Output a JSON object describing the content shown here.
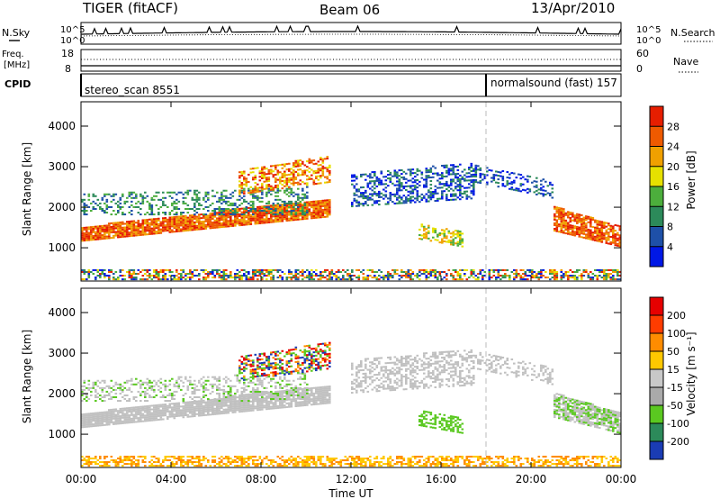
{
  "header": {
    "radar": "TIGER (fitACF)",
    "beam": "Beam 06",
    "date": "13/Apr/2010"
  },
  "noise_panel": {
    "left_label": "N.Sky",
    "right_label": "N.Search",
    "tick_top": "10^5",
    "tick_bottom": "10^0"
  },
  "freq_panel": {
    "left_label_1": "Freq.",
    "left_label_2": "[MHz]",
    "right_label": "Nave",
    "left_ticks": [
      "18",
      "8"
    ],
    "right_ticks": [
      "60",
      "0"
    ]
  },
  "cpid_panel": {
    "label": "CPID",
    "programs": [
      {
        "name": "stereo_scan 8551",
        "start_hour": 0
      },
      {
        "name": "normalsound (fast) 157",
        "start_hour": 18
      }
    ]
  },
  "chart_data": [
    {
      "type": "heatmap",
      "name": "power",
      "xlabel": "Time UT",
      "ylabel": "Slant Range [km]",
      "xlim": [
        0,
        24
      ],
      "ylim": [
        180,
        4600
      ],
      "x_ticks": [
        "00:00",
        "04:00",
        "08:00",
        "12:00",
        "16:00",
        "20:00",
        "00:00"
      ],
      "y_ticks": [
        1000,
        2000,
        3000,
        4000
      ],
      "colorbar": {
        "label": "Power [dB]",
        "ticks": [
          4,
          8,
          12,
          16,
          20,
          24,
          28
        ],
        "colors": [
          "#0018e6",
          "#1e50a8",
          "#2c8a5a",
          "#4cae3c",
          "#e6e000",
          "#f0a000",
          "#ee5a00",
          "#e61e00"
        ]
      }
    },
    {
      "type": "heatmap",
      "name": "velocity",
      "xlabel": "Time UT",
      "ylabel": "Slant Range [km]",
      "xlim": [
        0,
        24
      ],
      "ylim": [
        180,
        4600
      ],
      "x_ticks": [
        "00:00",
        "04:00",
        "08:00",
        "12:00",
        "16:00",
        "20:00",
        "00:00"
      ],
      "y_ticks": [
        1000,
        2000,
        3000,
        4000
      ],
      "colorbar": {
        "label": "Velocity [m s⁻¹]",
        "ticks": [
          200,
          100,
          50,
          15,
          -15,
          -50,
          -100,
          -200
        ],
        "colors": [
          "#1a3cb4",
          "#2c8a5a",
          "#5ac820",
          "#aaaaaa",
          "#c8c8c8",
          "#ffc800",
          "#ff8c00",
          "#ff3c00",
          "#e60000"
        ]
      }
    }
  ]
}
